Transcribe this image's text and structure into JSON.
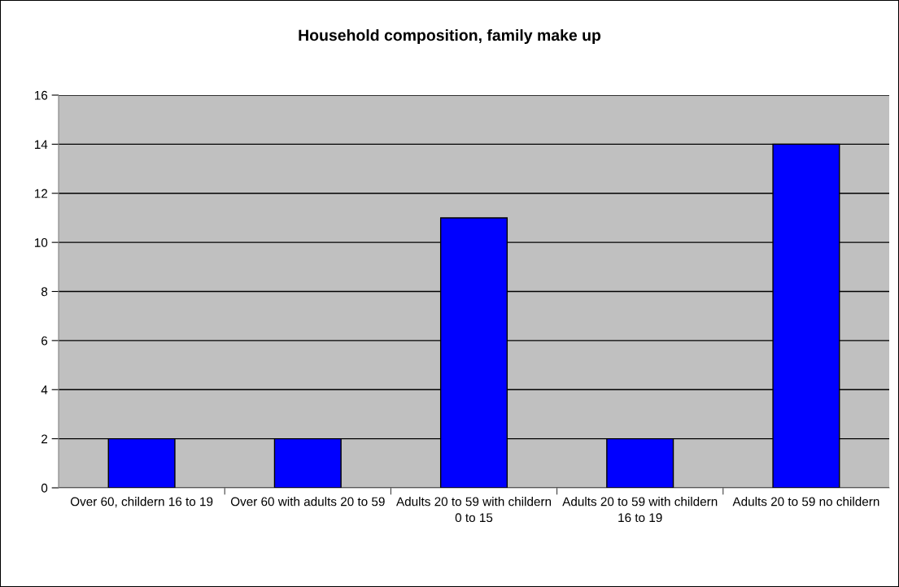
{
  "chart_data": {
    "type": "bar",
    "title": "Household composition, family make up",
    "categories": [
      "Over 60, childern 16 to 19",
      "Over 60 with adults 20 to 59",
      "Adults 20 to 59 with childern 0 to 15",
      "Adults 20 to 59 with childern 16 to 19",
      "Adults 20 to 59 no childern"
    ],
    "values": [
      2,
      2,
      11,
      2,
      14
    ],
    "color": "#0000ff",
    "ylim": [
      0,
      16
    ],
    "yticks": [
      0,
      2,
      4,
      6,
      8,
      10,
      12,
      14,
      16
    ],
    "grid": "y",
    "legend": false
  }
}
